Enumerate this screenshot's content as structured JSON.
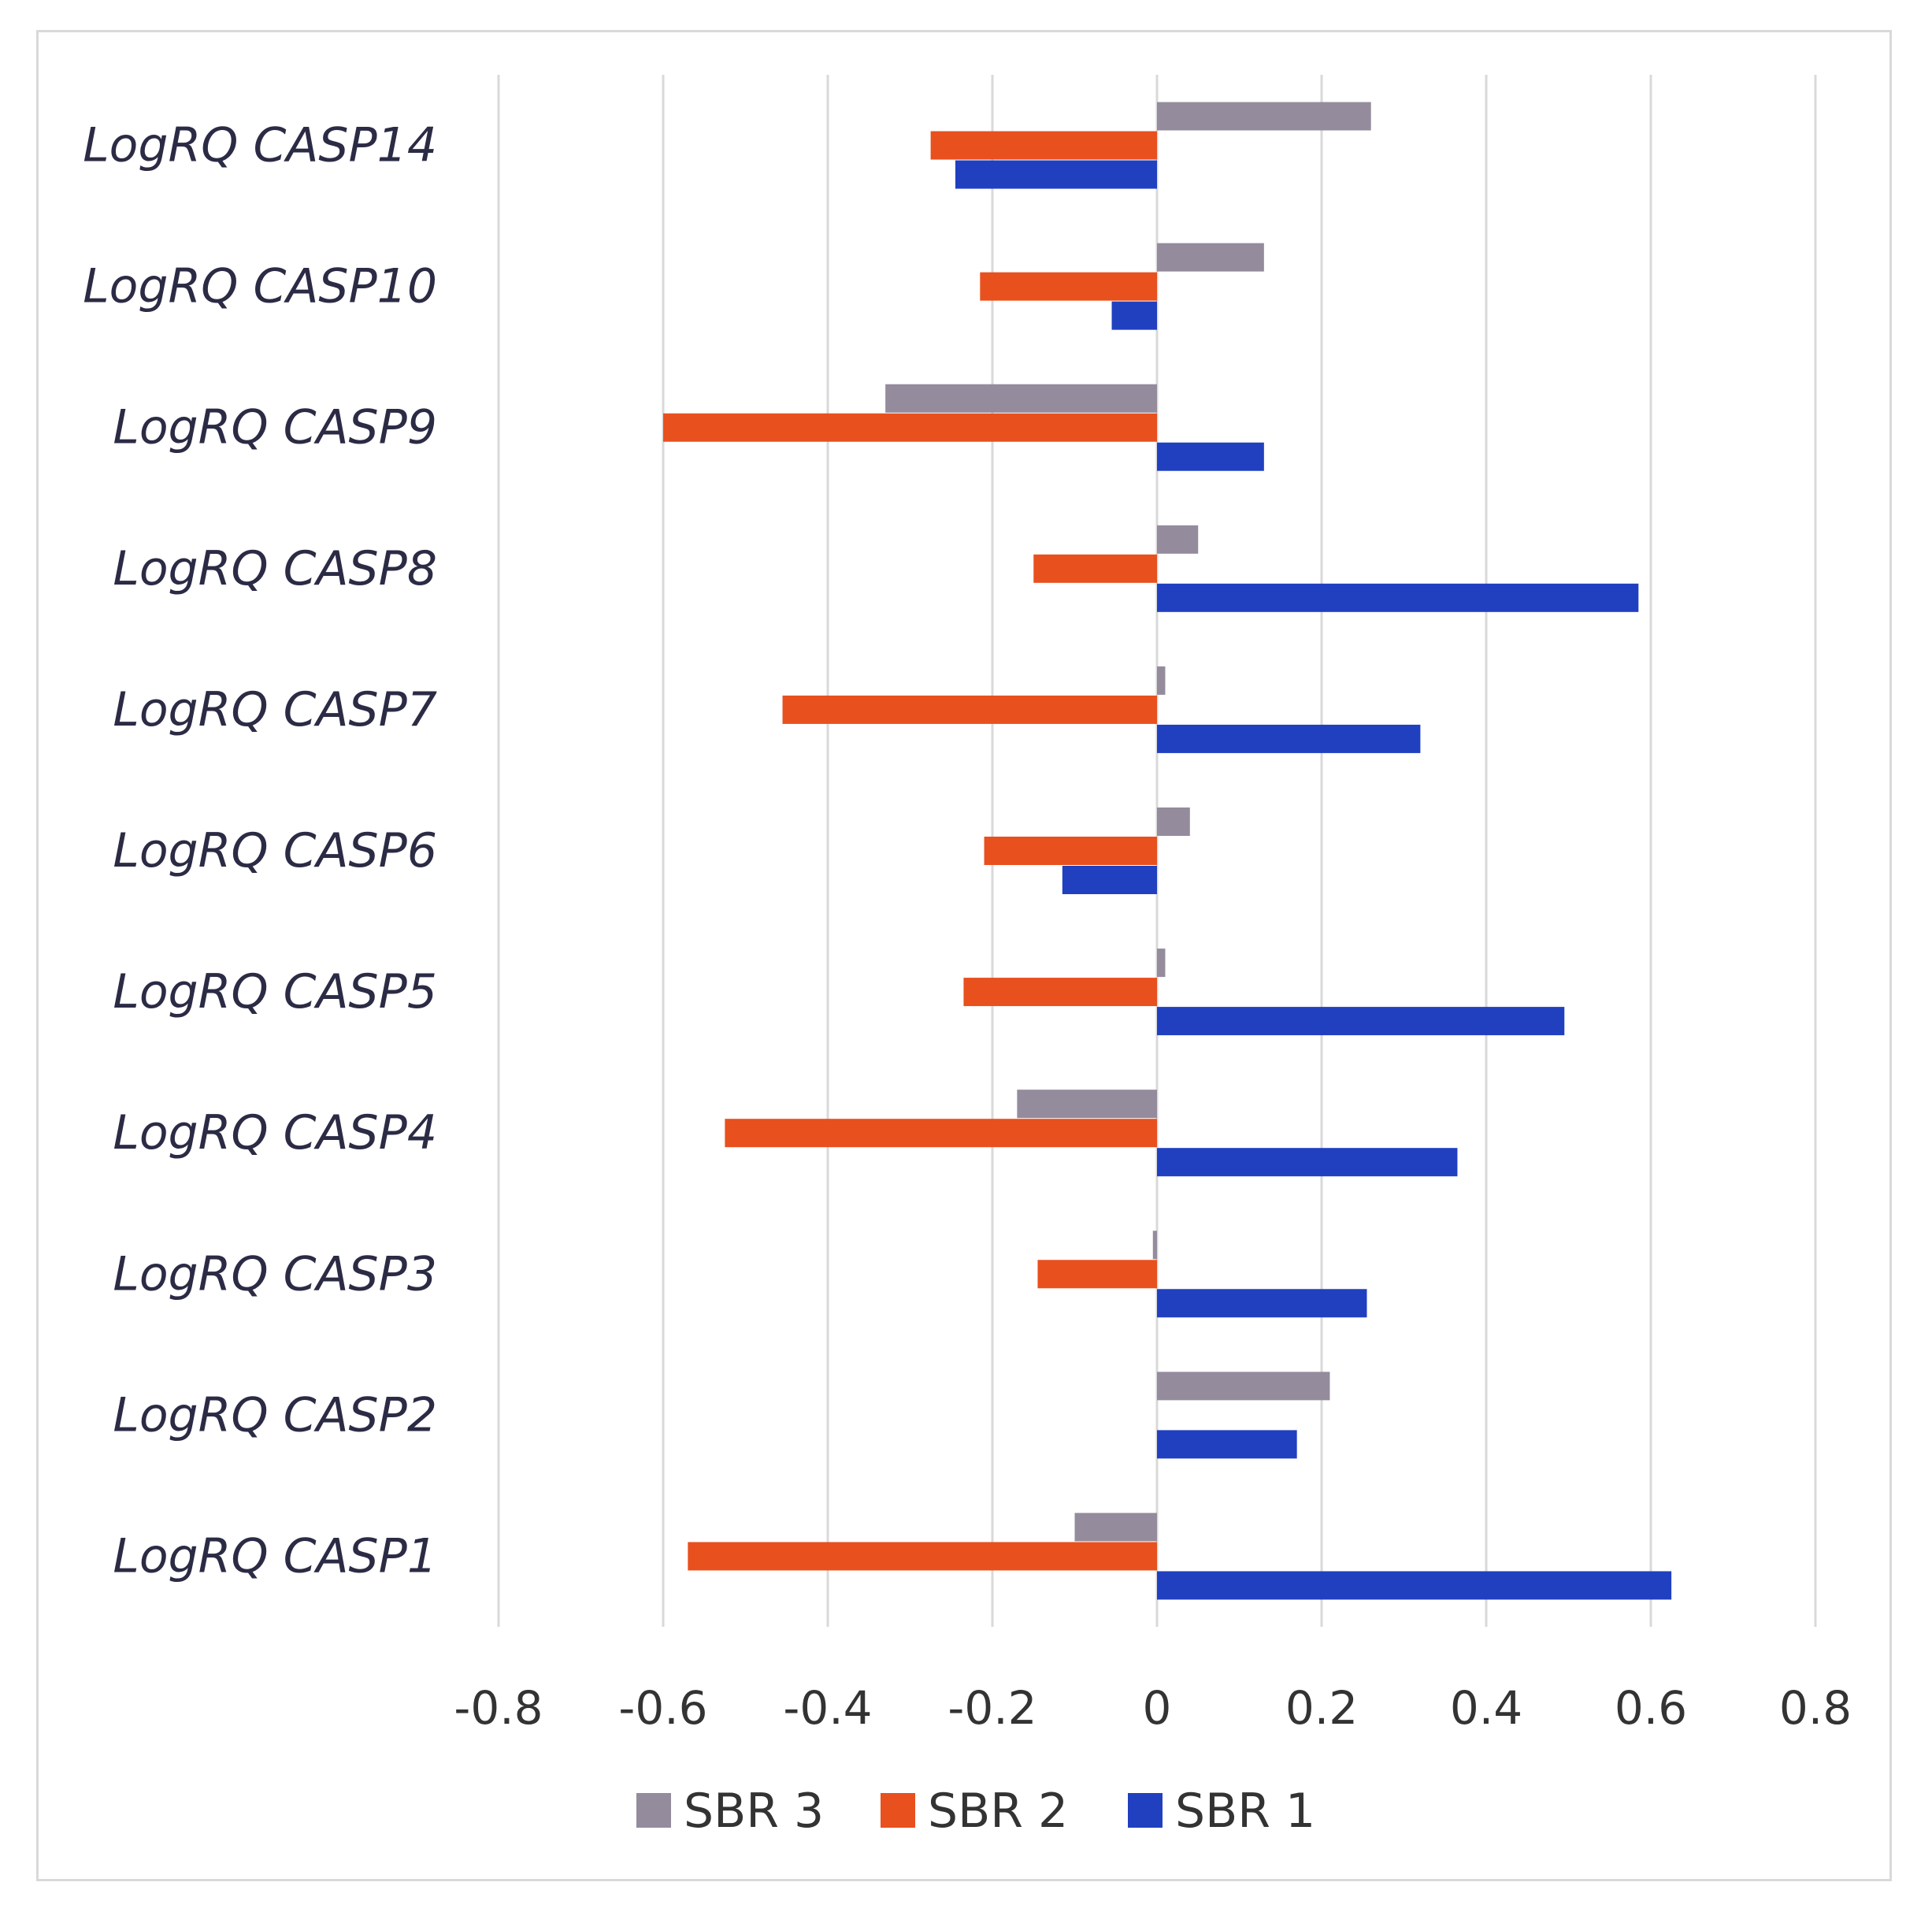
{
  "chart_data": {
    "type": "bar",
    "orientation": "horizontal",
    "categories": [
      "LogRQ CASP14",
      "LogRQ CASP10",
      "LogRQ CASP9",
      "LogRQ CASP8",
      "LogRQ CASP7",
      "LogRQ CASP6",
      "LogRQ CASP5",
      "LogRQ CASP4",
      "LogRQ CASP3",
      "LogRQ CASP2",
      "LogRQ CASP1"
    ],
    "series": [
      {
        "name": "SBR 3",
        "color": "#948b9c",
        "values": [
          0.26,
          0.13,
          -0.33,
          0.05,
          0.01,
          0.04,
          0.01,
          -0.17,
          -0.005,
          0.21,
          -0.1
        ]
      },
      {
        "name": "SBR 2",
        "color": "#e8501e",
        "values": [
          -0.275,
          -0.215,
          -0.6,
          -0.15,
          -0.455,
          -0.21,
          -0.235,
          -0.525,
          -0.145,
          0.0,
          -0.57
        ]
      },
      {
        "name": "SBR 1",
        "color": "#2040c0",
        "values": [
          -0.245,
          -0.055,
          0.13,
          0.585,
          0.32,
          -0.115,
          0.495,
          0.365,
          0.255,
          0.17,
          0.625
        ]
      }
    ],
    "xlim": [
      -0.8,
      0.8
    ],
    "xticks": [
      -0.8,
      -0.6,
      -0.4,
      -0.2,
      0,
      0.2,
      0.4,
      0.6,
      0.8
    ],
    "xtick_labels": [
      "-0.8",
      "-0.6",
      "-0.4",
      "-0.2",
      "0",
      "0.2",
      "0.4",
      "0.6",
      "0.8"
    ],
    "grid": true,
    "legend_position": "bottom",
    "title": "",
    "xlabel": "",
    "ylabel": ""
  }
}
